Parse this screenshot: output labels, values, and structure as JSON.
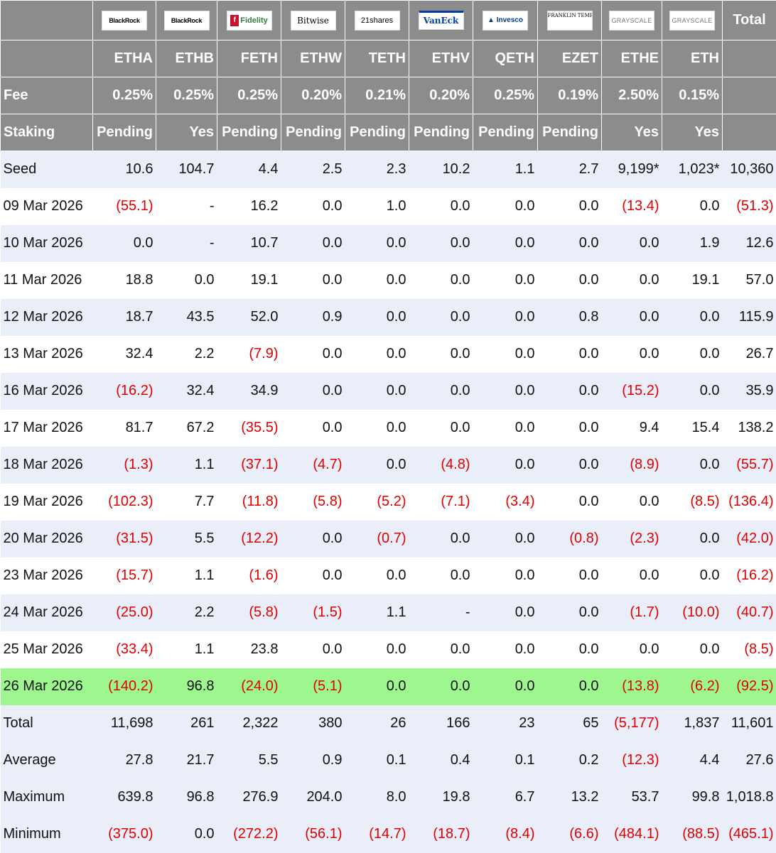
{
  "chart_data": {
    "type": "table",
    "colors": {
      "header_bg": "#8c8c8c",
      "negative": "#e00000",
      "highlight_row": "#9ef78e",
      "band": "#eaeef8"
    },
    "issuers": [
      "BlackRock",
      "BlackRock",
      "Fidelity",
      "Bitwise",
      "21shares",
      "VanEck",
      "Invesco",
      "FRANKLIN TEMPLETON",
      "GRAYSCALE",
      "GRAYSCALE"
    ],
    "total_label": "Total",
    "tickers": [
      "ETHA",
      "ETHB",
      "FETH",
      "ETHW",
      "TETH",
      "ETHV",
      "QETH",
      "EZET",
      "ETHE",
      "ETH"
    ],
    "fee_label": "Fee",
    "fees": [
      "0.25%",
      "0.25%",
      "0.25%",
      "0.20%",
      "0.21%",
      "0.20%",
      "0.25%",
      "0.19%",
      "2.50%",
      "0.15%"
    ],
    "staking_label": "Staking",
    "staking": [
      "Pending",
      "Yes",
      "Pending",
      "Pending",
      "Pending",
      "Pending",
      "Pending",
      "Pending",
      "Yes",
      "Yes"
    ],
    "rows": [
      {
        "label": "Seed",
        "values": [
          "10.6",
          "104.7",
          "4.4",
          "2.5",
          "2.3",
          "10.2",
          "1.1",
          "2.7",
          "9,199*",
          "1,023*",
          "10,360"
        ]
      },
      {
        "label": "09 Mar 2026",
        "values": [
          "(55.1)",
          "-",
          "16.2",
          "0.0",
          "1.0",
          "0.0",
          "0.0",
          "0.0",
          "(13.4)",
          "0.0",
          "(51.3)"
        ]
      },
      {
        "label": "10 Mar 2026",
        "values": [
          "0.0",
          "-",
          "10.7",
          "0.0",
          "0.0",
          "0.0",
          "0.0",
          "0.0",
          "0.0",
          "1.9",
          "12.6"
        ]
      },
      {
        "label": "11 Mar 2026",
        "values": [
          "18.8",
          "0.0",
          "19.1",
          "0.0",
          "0.0",
          "0.0",
          "0.0",
          "0.0",
          "0.0",
          "19.1",
          "57.0"
        ]
      },
      {
        "label": "12 Mar 2026",
        "values": [
          "18.7",
          "43.5",
          "52.0",
          "0.9",
          "0.0",
          "0.0",
          "0.0",
          "0.8",
          "0.0",
          "0.0",
          "115.9"
        ]
      },
      {
        "label": "13 Mar 2026",
        "values": [
          "32.4",
          "2.2",
          "(7.9)",
          "0.0",
          "0.0",
          "0.0",
          "0.0",
          "0.0",
          "0.0",
          "0.0",
          "26.7"
        ]
      },
      {
        "label": "16 Mar 2026",
        "values": [
          "(16.2)",
          "32.4",
          "34.9",
          "0.0",
          "0.0",
          "0.0",
          "0.0",
          "0.0",
          "(15.2)",
          "0.0",
          "35.9"
        ]
      },
      {
        "label": "17 Mar 2026",
        "values": [
          "81.7",
          "67.2",
          "(35.5)",
          "0.0",
          "0.0",
          "0.0",
          "0.0",
          "0.0",
          "9.4",
          "15.4",
          "138.2"
        ]
      },
      {
        "label": "18 Mar 2026",
        "values": [
          "(1.3)",
          "1.1",
          "(37.1)",
          "(4.7)",
          "0.0",
          "(4.8)",
          "0.0",
          "0.0",
          "(8.9)",
          "0.0",
          "(55.7)"
        ]
      },
      {
        "label": "19 Mar 2026",
        "values": [
          "(102.3)",
          "7.7",
          "(11.8)",
          "(5.8)",
          "(5.2)",
          "(7.1)",
          "(3.4)",
          "0.0",
          "0.0",
          "(8.5)",
          "(136.4)"
        ]
      },
      {
        "label": "20 Mar 2026",
        "values": [
          "(31.5)",
          "5.5",
          "(12.2)",
          "0.0",
          "(0.7)",
          "0.0",
          "0.0",
          "(0.8)",
          "(2.3)",
          "0.0",
          "(42.0)"
        ]
      },
      {
        "label": "23 Mar 2026",
        "values": [
          "(15.7)",
          "1.1",
          "(1.6)",
          "0.0",
          "0.0",
          "0.0",
          "0.0",
          "0.0",
          "0.0",
          "0.0",
          "(16.2)"
        ]
      },
      {
        "label": "24 Mar 2026",
        "values": [
          "(25.0)",
          "2.2",
          "(5.8)",
          "(1.5)",
          "1.1",
          "-",
          "0.0",
          "0.0",
          "(1.7)",
          "(10.0)",
          "(40.7)"
        ]
      },
      {
        "label": "25 Mar 2026",
        "values": [
          "(33.4)",
          "1.1",
          "23.8",
          "0.0",
          "0.0",
          "0.0",
          "0.0",
          "0.0",
          "0.0",
          "0.0",
          "(8.5)"
        ]
      },
      {
        "label": "26 Mar 2026",
        "highlight": true,
        "values": [
          "(140.2)",
          "96.8",
          "(24.0)",
          "(5.1)",
          "0.0",
          "0.0",
          "0.0",
          "0.0",
          "(13.8)",
          "(6.2)",
          "(92.5)"
        ]
      }
    ],
    "summary": [
      {
        "label": "Total",
        "values": [
          "11,698",
          "261",
          "2,322",
          "380",
          "26",
          "166",
          "23",
          "65",
          "(5,177)",
          "1,837",
          "11,601"
        ]
      },
      {
        "label": "Average",
        "values": [
          "27.8",
          "21.7",
          "5.5",
          "0.9",
          "0.1",
          "0.4",
          "0.1",
          "0.2",
          "(12.3)",
          "4.4",
          "27.6"
        ]
      },
      {
        "label": "Maximum",
        "values": [
          "639.8",
          "96.8",
          "276.9",
          "204.0",
          "8.0",
          "19.8",
          "6.7",
          "13.2",
          "53.7",
          "99.8",
          "1,018.8"
        ]
      },
      {
        "label": "Minimum",
        "values": [
          "(375.0)",
          "0.0",
          "(272.2)",
          "(56.1)",
          "(14.7)",
          "(18.7)",
          "(8.4)",
          "(6.6)",
          "(484.1)",
          "(88.5)",
          "(465.1)"
        ]
      }
    ]
  }
}
